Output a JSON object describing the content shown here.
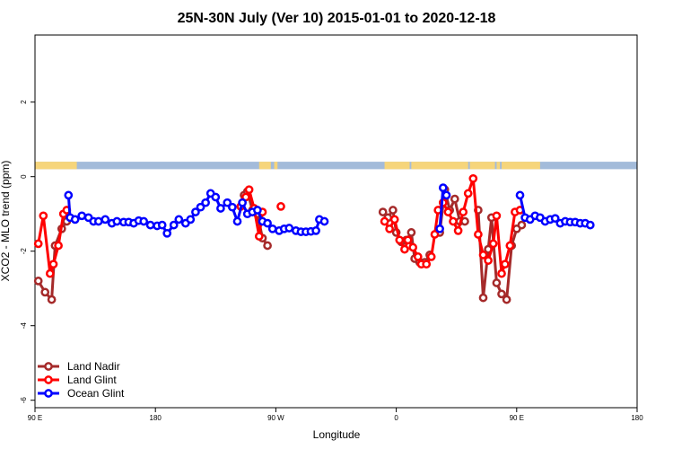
{
  "chart_data": {
    "type": "line",
    "title": "25N-30N July (Ver 10)   2015-01-01 to 2020-12-18",
    "xlabel": "Longitude",
    "ylabel": "XCO2 - MLO trend (ppm)",
    "xlim": [
      -90,
      270
    ],
    "ylim": [
      -6.2,
      3.8
    ],
    "x_ticks": [
      {
        "value": -90,
        "label": "90 E"
      },
      {
        "value": -18,
        "label": "180"
      },
      {
        "value": 54,
        "label": "90 W"
      },
      {
        "value": 126,
        "label": "0"
      },
      {
        "value": 198,
        "label": "90 E"
      },
      {
        "value": 270,
        "label": "180"
      }
    ],
    "y_ticks": [
      {
        "value": -6,
        "label": "-6"
      },
      {
        "value": -4,
        "label": "-4"
      },
      {
        "value": -2,
        "label": "-2"
      },
      {
        "value": 0,
        "label": "0"
      },
      {
        "value": 2,
        "label": "2"
      }
    ],
    "land_ocean_strip": {
      "y_range": [
        0.2,
        0.4
      ],
      "ocean_color": "#a3bbda",
      "land_color": "#f6d57b",
      "land_segments": [
        [
          -90,
          -65
        ],
        [
          44,
          51
        ],
        [
          53,
          55
        ],
        [
          119,
          134
        ],
        [
          135,
          169
        ],
        [
          170,
          185
        ],
        [
          186,
          188
        ],
        [
          189,
          212
        ]
      ]
    },
    "legend": {
      "position": "bottom-left"
    },
    "series": [
      {
        "name": "Land Nadir",
        "color": "#a52a2a",
        "segments": [
          [
            [
              -88,
              -2.8
            ],
            [
              -84,
              -3.1
            ],
            [
              -80,
              -3.3
            ],
            [
              -78,
              -1.85
            ],
            [
              -74,
              -1.4
            ],
            [
              -71,
              -1.2
            ]
          ],
          [
            [
              35,
              -0.5
            ],
            [
              37,
              -0.4
            ],
            [
              40,
              -0.9
            ],
            [
              43,
              -1.0
            ],
            [
              46,
              -1.65
            ],
            [
              49,
              -1.85
            ]
          ],
          [
            [
              118,
              -0.95
            ],
            [
              121,
              -1.1
            ],
            [
              124,
              -0.9
            ],
            [
              126,
              -1.5
            ],
            [
              129,
              -1.75
            ],
            [
              132,
              -1.7
            ],
            [
              135,
              -1.5
            ],
            [
              137,
              -2.2
            ],
            [
              140,
              -2.3
            ],
            [
              143,
              -2.3
            ],
            [
              146,
              -2.1
            ]
          ],
          [
            [
              152,
              -1.5
            ],
            [
              155,
              -0.35
            ],
            [
              158,
              -0.9
            ],
            [
              161,
              -0.6
            ],
            [
              164,
              -1.2
            ],
            [
              167,
              -1.2
            ]
          ],
          [
            [
              175,
              -0.9
            ],
            [
              178,
              -3.25
            ],
            [
              181,
              -1.95
            ],
            [
              183,
              -1.1
            ],
            [
              186,
              -2.85
            ],
            [
              189,
              -3.15
            ],
            [
              192,
              -3.3
            ],
            [
              195,
              -1.85
            ],
            [
              198,
              -1.4
            ],
            [
              201,
              -1.3
            ]
          ]
        ]
      },
      {
        "name": "Land Glint",
        "color": "#ff0000",
        "segments": [
          [
            [
              -88,
              -1.8
            ],
            [
              -85,
              -1.05
            ],
            [
              -81,
              -2.6
            ],
            [
              -79,
              -2.35
            ],
            [
              -76,
              -1.85
            ],
            [
              -73,
              -1.0
            ],
            [
              -71,
              -0.9
            ]
          ],
          [
            [
              33,
              -0.8
            ],
            [
              36,
              -0.55
            ],
            [
              38,
              -0.35
            ],
            [
              41,
              -0.85
            ],
            [
              44,
              -1.6
            ],
            [
              46,
              -0.95
            ]
          ],
          [
            [
              57,
              -0.8
            ]
          ],
          [
            [
              119,
              -1.2
            ],
            [
              122,
              -1.4
            ],
            [
              125,
              -1.15
            ],
            [
              128,
              -1.7
            ],
            [
              131,
              -1.95
            ],
            [
              133,
              -1.7
            ],
            [
              136,
              -1.9
            ],
            [
              139,
              -2.15
            ],
            [
              141,
              -2.35
            ],
            [
              144,
              -2.35
            ],
            [
              147,
              -2.15
            ],
            [
              149,
              -1.55
            ],
            [
              151,
              -0.9
            ],
            [
              154,
              -0.7
            ],
            [
              157,
              -0.95
            ],
            [
              160,
              -1.2
            ],
            [
              163,
              -1.45
            ],
            [
              166,
              -0.95
            ],
            [
              169,
              -0.45
            ],
            [
              172,
              -0.05
            ],
            [
              175,
              -1.55
            ],
            [
              178,
              -2.1
            ],
            [
              181,
              -2.25
            ],
            [
              184,
              -1.8
            ],
            [
              186,
              -1.05
            ],
            [
              189,
              -2.6
            ],
            [
              191,
              -2.35
            ],
            [
              194,
              -1.85
            ],
            [
              197,
              -0.95
            ],
            [
              200,
              -0.9
            ]
          ]
        ]
      },
      {
        "name": "Ocean Glint",
        "color": "#0000ff",
        "segments": [
          [
            [
              -70,
              -0.5
            ],
            [
              -69,
              -1.1
            ],
            [
              -66,
              -1.15
            ],
            [
              -62,
              -1.05
            ],
            [
              -58,
              -1.1
            ],
            [
              -55,
              -1.2
            ],
            [
              -52,
              -1.2
            ],
            [
              -48,
              -1.15
            ],
            [
              -44,
              -1.25
            ],
            [
              -41,
              -1.2
            ],
            [
              -37,
              -1.22
            ],
            [
              -34,
              -1.22
            ],
            [
              -31,
              -1.25
            ],
            [
              -28,
              -1.18
            ],
            [
              -25,
              -1.2
            ],
            [
              -21,
              -1.3
            ],
            [
              -17,
              -1.32
            ],
            [
              -14,
              -1.3
            ],
            [
              -11,
              -1.52
            ],
            [
              -7,
              -1.3
            ],
            [
              -4,
              -1.15
            ],
            [
              0,
              -1.25
            ],
            [
              3,
              -1.15
            ],
            [
              6,
              -0.95
            ],
            [
              9,
              -0.82
            ],
            [
              12,
              -0.7
            ],
            [
              15,
              -0.45
            ],
            [
              18,
              -0.55
            ],
            [
              21,
              -0.85
            ],
            [
              25,
              -0.7
            ],
            [
              28,
              -0.82
            ],
            [
              31,
              -1.2
            ],
            [
              34,
              -0.7
            ],
            [
              37,
              -1.0
            ],
            [
              40,
              -0.95
            ],
            [
              43,
              -0.9
            ],
            [
              46,
              -1.2
            ],
            [
              49,
              -1.25
            ],
            [
              52,
              -1.4
            ],
            [
              56,
              -1.45
            ],
            [
              59,
              -1.4
            ],
            [
              62,
              -1.38
            ],
            [
              66,
              -1.45
            ],
            [
              69,
              -1.48
            ],
            [
              72,
              -1.48
            ],
            [
              75,
              -1.47
            ],
            [
              78,
              -1.45
            ],
            [
              80,
              -1.15
            ],
            [
              83,
              -1.2
            ]
          ],
          [
            [
              152,
              -1.4
            ],
            [
              154,
              -0.3
            ],
            [
              156,
              -0.5
            ]
          ],
          [
            [
              200,
              -0.5
            ],
            [
              203,
              -1.1
            ],
            [
              206,
              -1.15
            ],
            [
              209,
              -1.05
            ],
            [
              212,
              -1.1
            ],
            [
              215,
              -1.2
            ],
            [
              218,
              -1.15
            ],
            [
              221,
              -1.12
            ],
            [
              224,
              -1.25
            ],
            [
              227,
              -1.2
            ],
            [
              230,
              -1.22
            ],
            [
              233,
              -1.22
            ],
            [
              236,
              -1.25
            ],
            [
              239,
              -1.25
            ],
            [
              242,
              -1.3
            ]
          ]
        ]
      }
    ]
  }
}
